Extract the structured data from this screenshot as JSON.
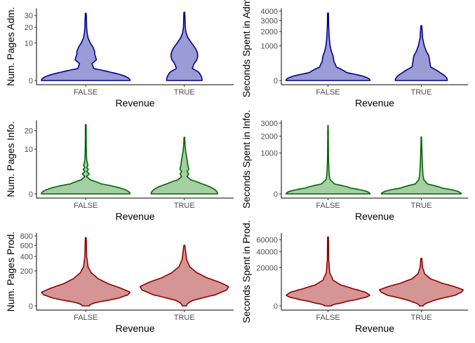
{
  "chart_data": [
    {
      "type": "violin",
      "xlabel": "Revenue",
      "ylabel": "Num. Pages Adm.",
      "categories": [
        "FALSE",
        "TRUE"
      ],
      "y_scale": "sqrt",
      "ylim": [
        0,
        34
      ],
      "yticks": [
        0,
        10,
        20,
        30
      ],
      "colors": {
        "fill": "#9b9bd6",
        "stroke": "#00008b"
      },
      "series": [
        {
          "category": "FALSE",
          "max": 32,
          "profile": [
            [
              0,
              1.0
            ],
            [
              0.5,
              0.55
            ],
            [
              1,
              0.18
            ],
            [
              2,
              0.14
            ],
            [
              3,
              0.24
            ],
            [
              4,
              0.22
            ],
            [
              5,
              0.2
            ],
            [
              6,
              0.2
            ],
            [
              8,
              0.16
            ],
            [
              10,
              0.1
            ],
            [
              13,
              0.05
            ],
            [
              16,
              0.03
            ],
            [
              20,
              0.02
            ],
            [
              32,
              0.01
            ]
          ]
        },
        {
          "category": "TRUE",
          "max": 33,
          "profile": [
            [
              0,
              0.4
            ],
            [
              0.5,
              0.32
            ],
            [
              1,
              0.18
            ],
            [
              2,
              0.22
            ],
            [
              3,
              0.28
            ],
            [
              4,
              0.3
            ],
            [
              5,
              0.3
            ],
            [
              7,
              0.26
            ],
            [
              10,
              0.16
            ],
            [
              13,
              0.08
            ],
            [
              16,
              0.04
            ],
            [
              20,
              0.02
            ],
            [
              33,
              0.01
            ]
          ]
        }
      ]
    },
    {
      "type": "violin",
      "xlabel": "Revenue",
      "ylabel": "Seconds Spent in Adm.",
      "categories": [
        "FALSE",
        "TRUE"
      ],
      "y_scale": "sqrt",
      "ylim": [
        0,
        4000
      ],
      "yticks": [
        0,
        1000,
        2000,
        3000,
        4000
      ],
      "colors": {
        "fill": "#9b9bd6",
        "stroke": "#00008b"
      },
      "series": [
        {
          "category": "FALSE",
          "max": 3800,
          "profile": [
            [
              0,
              1.0
            ],
            [
              50,
              0.45
            ],
            [
              150,
              0.2
            ],
            [
              300,
              0.14
            ],
            [
              500,
              0.12
            ],
            [
              700,
              0.08
            ],
            [
              1000,
              0.05
            ],
            [
              1500,
              0.03
            ],
            [
              2500,
              0.015
            ],
            [
              3800,
              0.01
            ]
          ]
        },
        {
          "category": "TRUE",
          "max": 2500,
          "profile": [
            [
              0,
              0.62
            ],
            [
              50,
              0.45
            ],
            [
              150,
              0.22
            ],
            [
              300,
              0.2
            ],
            [
              500,
              0.18
            ],
            [
              700,
              0.12
            ],
            [
              1000,
              0.07
            ],
            [
              1500,
              0.03
            ],
            [
              2500,
              0.01
            ]
          ]
        }
      ]
    },
    {
      "type": "violin",
      "xlabel": "Revenue",
      "ylabel": "Num. Pages Info.",
      "categories": [
        "FALSE",
        "TRUE"
      ],
      "y_scale": "sqrt",
      "ylim": [
        0,
        25
      ],
      "yticks": [
        0,
        10,
        20
      ],
      "colors": {
        "fill": "#a3cfa3",
        "stroke": "#006400"
      },
      "series": [
        {
          "category": "FALSE",
          "max": 24,
          "profile": [
            [
              0,
              1.0
            ],
            [
              0.5,
              0.35
            ],
            [
              1,
              0.1
            ],
            [
              1.5,
              0.02
            ],
            [
              2,
              0.08
            ],
            [
              2.5,
              0.02
            ],
            [
              3,
              0.06
            ],
            [
              3.5,
              0.02
            ],
            [
              4,
              0.05
            ],
            [
              5,
              0.03
            ],
            [
              6,
              0.02
            ],
            [
              8,
              0.015
            ],
            [
              12,
              0.01
            ],
            [
              24,
              0.008
            ]
          ]
        },
        {
          "category": "TRUE",
          "max": 16,
          "profile": [
            [
              0,
              0.75
            ],
            [
              0.5,
              0.4
            ],
            [
              1,
              0.14
            ],
            [
              1.5,
              0.06
            ],
            [
              2,
              0.1
            ],
            [
              2.5,
              0.06
            ],
            [
              3,
              0.1
            ],
            [
              4,
              0.08
            ],
            [
              5,
              0.07
            ],
            [
              6,
              0.06
            ],
            [
              7,
              0.05
            ],
            [
              9,
              0.03
            ],
            [
              12,
              0.015
            ],
            [
              16,
              0.008
            ]
          ]
        }
      ]
    },
    {
      "type": "violin",
      "xlabel": "Revenue",
      "ylabel": "Seconds Spent in Info.",
      "categories": [
        "FALSE",
        "TRUE"
      ],
      "y_scale": "sqrt",
      "ylim": [
        0,
        3000
      ],
      "yticks": [
        0,
        1000,
        2000,
        3000
      ],
      "colors": {
        "fill": "#a3cfa3",
        "stroke": "#006400"
      },
      "series": [
        {
          "category": "FALSE",
          "max": 2800,
          "profile": [
            [
              0,
              1.0
            ],
            [
              20,
              0.55
            ],
            [
              60,
              0.15
            ],
            [
              120,
              0.05
            ],
            [
              200,
              0.03
            ],
            [
              400,
              0.02
            ],
            [
              700,
              0.012
            ],
            [
              1000,
              0.01
            ],
            [
              1500,
              0.008
            ],
            [
              2800,
              0.005
            ]
          ]
        },
        {
          "category": "TRUE",
          "max": 1950,
          "profile": [
            [
              0,
              0.95
            ],
            [
              20,
              0.5
            ],
            [
              60,
              0.14
            ],
            [
              120,
              0.06
            ],
            [
              200,
              0.04
            ],
            [
              400,
              0.03
            ],
            [
              700,
              0.02
            ],
            [
              1000,
              0.015
            ],
            [
              1500,
              0.008
            ],
            [
              1950,
              0.005
            ]
          ]
        }
      ]
    },
    {
      "type": "violin",
      "xlabel": "Revenue",
      "ylabel": "Num. Pages Prod.",
      "categories": [
        "FALSE",
        "TRUE"
      ],
      "y_scale": "sqrt",
      "ylim": [
        0,
        800
      ],
      "yticks": [
        0,
        200,
        400,
        600,
        800
      ],
      "colors": {
        "fill": "#d59594",
        "stroke": "#8b0000"
      },
      "series": [
        {
          "category": "FALSE",
          "max": 760,
          "profile": [
            [
              0,
              0.08
            ],
            [
              2,
              0.25
            ],
            [
              5,
              0.5
            ],
            [
              10,
              0.75
            ],
            [
              20,
              0.95
            ],
            [
              30,
              1.0
            ],
            [
              50,
              0.8
            ],
            [
              80,
              0.5
            ],
            [
              120,
              0.28
            ],
            [
              180,
              0.12
            ],
            [
              250,
              0.05
            ],
            [
              400,
              0.02
            ],
            [
              760,
              0.01
            ]
          ]
        },
        {
          "category": "TRUE",
          "max": 600,
          "profile": [
            [
              0,
              0.05
            ],
            [
              5,
              0.2
            ],
            [
              10,
              0.4
            ],
            [
              20,
              0.7
            ],
            [
              40,
              0.95
            ],
            [
              60,
              1.0
            ],
            [
              90,
              0.8
            ],
            [
              130,
              0.5
            ],
            [
              180,
              0.28
            ],
            [
              250,
              0.12
            ],
            [
              350,
              0.05
            ],
            [
              600,
              0.01
            ]
          ]
        }
      ]
    },
    {
      "type": "violin",
      "xlabel": "Revenue",
      "ylabel": "Seconds Spent in Prod.",
      "categories": [
        "FALSE",
        "TRUE"
      ],
      "y_scale": "sqrt",
      "ylim": [
        0,
        67000
      ],
      "yticks": [
        0,
        20000,
        40000,
        60000
      ],
      "colors": {
        "fill": "#d59594",
        "stroke": "#8b0000"
      },
      "series": [
        {
          "category": "FALSE",
          "max": 65000,
          "profile": [
            [
              0,
              0.08
            ],
            [
              100,
              0.3
            ],
            [
              500,
              0.65
            ],
            [
              1000,
              0.9
            ],
            [
              1500,
              1.0
            ],
            [
              2500,
              0.9
            ],
            [
              4000,
              0.6
            ],
            [
              6000,
              0.3
            ],
            [
              9000,
              0.12
            ],
            [
              15000,
              0.04
            ],
            [
              30000,
              0.015
            ],
            [
              65000,
              0.01
            ]
          ]
        },
        {
          "category": "TRUE",
          "max": 31000,
          "profile": [
            [
              0,
              0.05
            ],
            [
              200,
              0.2
            ],
            [
              800,
              0.5
            ],
            [
              1500,
              0.8
            ],
            [
              2500,
              0.95
            ],
            [
              3500,
              1.0
            ],
            [
              5000,
              0.8
            ],
            [
              7000,
              0.5
            ],
            [
              10000,
              0.22
            ],
            [
              14000,
              0.08
            ],
            [
              20000,
              0.03
            ],
            [
              31000,
              0.01
            ]
          ]
        }
      ]
    }
  ]
}
